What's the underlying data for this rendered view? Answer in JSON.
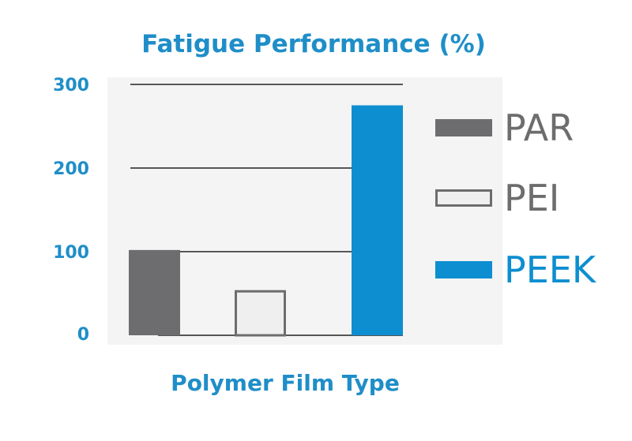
{
  "colors": {
    "accent_text": "#1f8ec8",
    "par_fill": "#6d6d6f",
    "pei_fill": "#efefef",
    "pei_stroke": "#6d6d6f",
    "peek_fill": "#0d8ed0",
    "legend_gray_text": "#6d6d6f",
    "plot_background": "#f3f4f3",
    "gridline": "#222222"
  },
  "chart_data": {
    "type": "bar",
    "title": "Fatigue Performance (%)",
    "xlabel": "Polymer Film Type",
    "ylabel": "",
    "categories": [
      "PAR",
      "PEI",
      "PEEK"
    ],
    "values": [
      102,
      54,
      275
    ],
    "ylim": [
      0,
      300
    ],
    "yticks": [
      {
        "value": 0,
        "label": "0"
      },
      {
        "value": 100,
        "label": "100"
      },
      {
        "value": 200,
        "label": "200"
      },
      {
        "value": 300,
        "label": "300"
      }
    ],
    "grid": true,
    "legend_position": "right",
    "legend": [
      {
        "label": "PAR",
        "fill": "#6d6d6f",
        "stroke": "#6d6d6f",
        "text_color": "#6d6d6f"
      },
      {
        "label": "PEI",
        "fill": "#efefef",
        "stroke": "#6d6d6f",
        "text_color": "#6d6d6f"
      },
      {
        "label": "PEEK",
        "fill": "#0d8ed0",
        "stroke": "#0d8ed0",
        "text_color": "#0d8ed0"
      }
    ]
  }
}
